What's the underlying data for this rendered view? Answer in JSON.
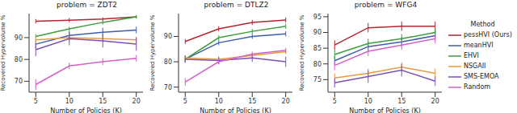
{
  "chart_data": [
    {
      "type": "line",
      "title": "problem = ZDT2",
      "x_label": "Number of Policies (K)",
      "y_label": "Recovered Hypervolume %",
      "x": [
        5,
        10,
        15,
        20
      ],
      "xlim": [
        4,
        21
      ],
      "xticks": [
        5,
        10,
        15,
        20
      ],
      "ylim": [
        65,
        101
      ],
      "yticks": [
        70,
        80,
        90
      ],
      "grid": false,
      "series": [
        {
          "name": "pessHVI (Ours)",
          "color": "#b2242e",
          "values": [
            97.5,
            98,
            98.5,
            99.5
          ],
          "errors": [
            1,
            1,
            0.8,
            0.7
          ]
        },
        {
          "name": "meanHVI",
          "color": "#3c5db0",
          "values": [
            87,
            91,
            92.5,
            93.5
          ],
          "errors": [
            2,
            2,
            2,
            1.5
          ]
        },
        {
          "name": "EHVI",
          "color": "#3a9e3a",
          "values": [
            90.5,
            94,
            97,
            99.5
          ],
          "errors": [
            1,
            1,
            1,
            0.8
          ]
        },
        {
          "name": "NSGAII",
          "color": "#e89a3c",
          "values": [
            89,
            90,
            89.5,
            89
          ],
          "errors": [
            1.5,
            1.5,
            1.5,
            1.5
          ]
        },
        {
          "name": "SMS-EMOA",
          "color": "#7c4fb5",
          "values": [
            84.5,
            89.5,
            88.5,
            87
          ],
          "errors": [
            3,
            3,
            3,
            3
          ]
        },
        {
          "name": "Random",
          "color": "#d45fc8",
          "values": [
            68.5,
            77,
            79,
            80.5
          ],
          "errors": [
            2.5,
            1.5,
            1.5,
            1.5
          ]
        }
      ]
    },
    {
      "type": "line",
      "title": "problem = DTLZ2",
      "x_label": "Number of Policies (K)",
      "y_label": "Recovered Hypervolume %",
      "x": [
        5,
        10,
        15,
        20
      ],
      "xlim": [
        4,
        21
      ],
      "xticks": [
        5,
        10,
        15,
        20
      ],
      "ylim": [
        68,
        99
      ],
      "yticks": [
        70,
        80,
        90
      ],
      "grid": false,
      "series": [
        {
          "name": "pessHVI (Ours)",
          "color": "#b2242e",
          "values": [
            88,
            93,
            95.5,
            96.5
          ],
          "errors": [
            1,
            1,
            1,
            1
          ]
        },
        {
          "name": "meanHVI",
          "color": "#3c5db0",
          "values": [
            81,
            87.5,
            90,
            91
          ],
          "errors": [
            1,
            1,
            1,
            1
          ]
        },
        {
          "name": "EHVI",
          "color": "#3a9e3a",
          "values": [
            81,
            89.5,
            92,
            94
          ],
          "errors": [
            1,
            1,
            1,
            1
          ]
        },
        {
          "name": "NSGAII",
          "color": "#e89a3c",
          "values": [
            81.5,
            81,
            82.5,
            84
          ],
          "errors": [
            1,
            1,
            1,
            1
          ]
        },
        {
          "name": "SMS-EMOA",
          "color": "#7c4fb5",
          "values": [
            81,
            80.5,
            81.5,
            80
          ],
          "errors": [
            1.5,
            1.5,
            1.5,
            2
          ]
        },
        {
          "name": "Random",
          "color": "#d45fc8",
          "values": [
            72,
            80,
            83,
            84.5
          ],
          "errors": [
            1.5,
            1,
            1,
            1
          ]
        }
      ]
    },
    {
      "type": "line",
      "title": "problem = WFG4",
      "x_label": "Number of Policies (K)",
      "y_label": "Recovered Hypervolume %",
      "x": [
        5,
        10,
        15,
        20
      ],
      "xlim": [
        4,
        21
      ],
      "xticks": [
        5,
        10,
        15,
        20
      ],
      "ylim": [
        71,
        96
      ],
      "yticks": [
        75,
        80,
        85,
        90,
        95
      ],
      "grid": false,
      "legend": "right",
      "legend_title": "Method",
      "series": [
        {
          "name": "pessHVI (Ours)",
          "color": "#b2242e",
          "values": [
            86,
            91.5,
            92,
            92
          ],
          "errors": [
            1.5,
            1.5,
            1.5,
            1.5
          ]
        },
        {
          "name": "meanHVI",
          "color": "#3c5db0",
          "values": [
            81,
            85.5,
            87,
            89
          ],
          "errors": [
            1.5,
            1.5,
            1.5,
            1.5
          ]
        },
        {
          "name": "EHVI",
          "color": "#3a9e3a",
          "values": [
            83,
            86.5,
            88,
            90
          ],
          "errors": [
            1.5,
            1.5,
            1.5,
            1.5
          ]
        },
        {
          "name": "NSGAII",
          "color": "#e89a3c",
          "values": [
            75.5,
            77,
            79,
            77
          ],
          "errors": [
            1.5,
            1.5,
            1.5,
            1.5
          ]
        },
        {
          "name": "SMS-EMOA",
          "color": "#7c4fb5",
          "values": [
            74,
            76,
            78,
            74.5
          ],
          "errors": [
            1.5,
            2,
            2,
            1.5
          ]
        },
        {
          "name": "Random",
          "color": "#d45fc8",
          "values": [
            79.5,
            84,
            86,
            88
          ],
          "errors": [
            1.5,
            1.5,
            1.5,
            1.5
          ]
        }
      ]
    }
  ]
}
